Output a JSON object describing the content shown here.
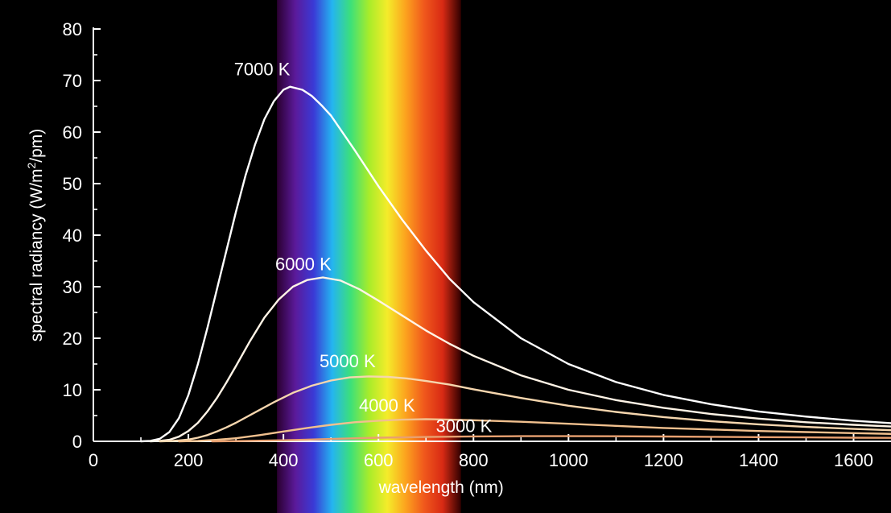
{
  "chart_data": {
    "type": "line",
    "title": "",
    "xlabel": "wavelength (nm)",
    "ylabel_prefix": "spectral radiancy (W/m",
    "ylabel_sup": "2",
    "ylabel_suffix": "/pm)",
    "xlim": [
      0,
      1700
    ],
    "ylim": [
      0,
      80
    ],
    "xticks": [
      0,
      200,
      400,
      600,
      800,
      1000,
      1200,
      1400,
      1600
    ],
    "xtick_labels": [
      "0",
      "200",
      "400",
      "600",
      "800",
      "1000",
      "1200",
      "1400",
      "1600"
    ],
    "yticks": [
      0,
      10,
      20,
      30,
      40,
      50,
      60,
      70,
      80
    ],
    "ytick_labels": [
      "0",
      "10",
      "20",
      "30",
      "40",
      "50",
      "60",
      "70",
      "80"
    ],
    "grid": false,
    "background": "#000000",
    "visible_spectrum_nm": [
      400,
      750
    ],
    "spectrum_colors": [
      "#2a0030",
      "#5b1a9a",
      "#3a3ad6",
      "#24b4f0",
      "#3ce07a",
      "#a8ec2a",
      "#f4ec2a",
      "#fca21e",
      "#f0581c",
      "#d82a14",
      "#300000"
    ],
    "series": [
      {
        "name": "7000 K",
        "color": "#ffffff",
        "x": [
          100,
          120,
          140,
          160,
          180,
          200,
          220,
          240,
          260,
          280,
          300,
          320,
          340,
          360,
          380,
          400,
          414,
          440,
          460,
          480,
          500,
          550,
          600,
          650,
          700,
          750,
          800,
          900,
          1000,
          1100,
          1200,
          1300,
          1400,
          1500,
          1600,
          1700
        ],
        "values": [
          0,
          0.1,
          0.5,
          1.8,
          4.5,
          9.0,
          15.0,
          22.0,
          29.5,
          37.0,
          44.5,
          51.5,
          57.5,
          62.5,
          66.0,
          68.2,
          68.8,
          68.2,
          67.0,
          65.2,
          63.2,
          56.5,
          49.5,
          43.0,
          37.0,
          31.5,
          27.0,
          20.0,
          15.0,
          11.5,
          9.0,
          7.2,
          5.8,
          4.8,
          4.0,
          3.4
        ]
      },
      {
        "name": "6000 K",
        "color": "#fff4e6",
        "x": [
          120,
          140,
          160,
          180,
          200,
          220,
          240,
          260,
          280,
          300,
          330,
          360,
          390,
          420,
          450,
          483,
          520,
          560,
          600,
          650,
          700,
          750,
          800,
          900,
          1000,
          1100,
          1200,
          1300,
          1400,
          1500,
          1600,
          1700
        ],
        "values": [
          0,
          0.1,
          0.3,
          0.9,
          2.0,
          3.6,
          5.8,
          8.4,
          11.4,
          14.6,
          19.5,
          24.0,
          27.5,
          30.0,
          31.3,
          31.8,
          31.2,
          29.5,
          27.3,
          24.4,
          21.5,
          18.9,
          16.6,
          12.8,
          10.0,
          8.0,
          6.5,
          5.3,
          4.4,
          3.7,
          3.2,
          2.8
        ]
      },
      {
        "name": "5000 K",
        "color": "#f6d6ae",
        "x": [
          140,
          160,
          180,
          200,
          220,
          240,
          260,
          280,
          300,
          340,
          380,
          420,
          460,
          500,
          540,
          580,
          620,
          660,
          700,
          750,
          800,
          900,
          1000,
          1100,
          1200,
          1300,
          1400,
          1500,
          1600,
          1700
        ],
        "values": [
          0,
          0.05,
          0.15,
          0.35,
          0.7,
          1.2,
          1.9,
          2.7,
          3.6,
          5.6,
          7.6,
          9.4,
          10.8,
          11.8,
          12.4,
          12.6,
          12.5,
          12.2,
          11.7,
          11.0,
          10.1,
          8.4,
          6.9,
          5.7,
          4.7,
          3.9,
          3.3,
          2.8,
          2.4,
          2.1
        ]
      },
      {
        "name": "4000 K",
        "color": "#f1c08e",
        "x": [
          180,
          220,
          260,
          300,
          350,
          400,
          450,
          500,
          550,
          600,
          650,
          700,
          750,
          800,
          900,
          1000,
          1100,
          1200,
          1300,
          1400,
          1500,
          1600,
          1700
        ],
        "values": [
          0,
          0.1,
          0.3,
          0.6,
          1.2,
          1.9,
          2.6,
          3.2,
          3.7,
          4.0,
          4.2,
          4.3,
          4.2,
          4.1,
          3.8,
          3.4,
          3.0,
          2.6,
          2.3,
          2.0,
          1.8,
          1.6,
          1.4
        ]
      },
      {
        "name": "3000 K",
        "color": "#e8a070",
        "x": [
          250,
          300,
          400,
          500,
          600,
          700,
          800,
          900,
          1000,
          1100,
          1200,
          1300,
          1400,
          1500,
          1600,
          1700
        ],
        "values": [
          0,
          0.05,
          0.2,
          0.45,
          0.7,
          0.85,
          0.95,
          1.0,
          1.0,
          0.98,
          0.93,
          0.88,
          0.82,
          0.76,
          0.7,
          0.65
        ]
      }
    ],
    "annotations": [
      {
        "text": "7000 K",
        "x": 355,
        "y": 71.0
      },
      {
        "text": "6000 K",
        "x": 442,
        "y": 33.2
      },
      {
        "text": "5000 K",
        "x": 535,
        "y": 14.4
      },
      {
        "text": "4000 K",
        "x": 618,
        "y": 5.8
      },
      {
        "text": "3000 K",
        "x": 780,
        "y": 1.8
      }
    ]
  }
}
